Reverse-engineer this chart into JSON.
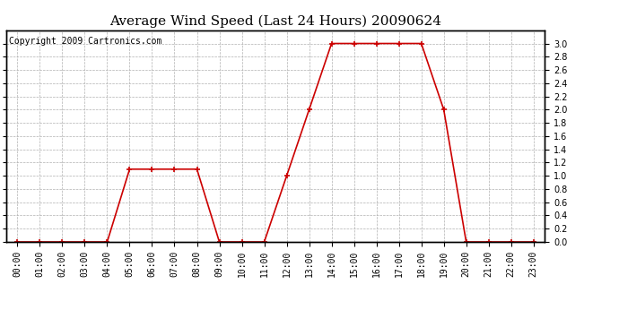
{
  "title": "Average Wind Speed (Last 24 Hours) 20090624",
  "copyright": "Copyright 2009 Cartronics.com",
  "x_labels": [
    "00:00",
    "01:00",
    "02:00",
    "03:00",
    "04:00",
    "05:00",
    "06:00",
    "07:00",
    "08:00",
    "09:00",
    "10:00",
    "11:00",
    "12:00",
    "13:00",
    "14:00",
    "15:00",
    "16:00",
    "17:00",
    "18:00",
    "19:00",
    "20:00",
    "21:00",
    "22:00",
    "23:00"
  ],
  "y_values": [
    0.0,
    0.0,
    0.0,
    0.0,
    0.0,
    1.1,
    1.1,
    1.1,
    1.1,
    0.0,
    0.0,
    0.0,
    1.0,
    2.0,
    3.0,
    3.0,
    3.0,
    3.0,
    3.0,
    2.0,
    0.0,
    0.0,
    0.0,
    0.0
  ],
  "line_color": "#cc0000",
  "marker_color": "#cc0000",
  "bg_color": "#ffffff",
  "plot_bg_color": "#ffffff",
  "grid_color": "#b0b0b0",
  "ylim": [
    0.0,
    3.2
  ],
  "yticks": [
    0.0,
    0.2,
    0.4,
    0.6,
    0.8,
    1.0,
    1.2,
    1.4,
    1.6,
    1.8,
    2.0,
    2.2,
    2.4,
    2.6,
    2.8,
    3.0
  ],
  "title_fontsize": 11,
  "copyright_fontsize": 7,
  "tick_fontsize": 7
}
